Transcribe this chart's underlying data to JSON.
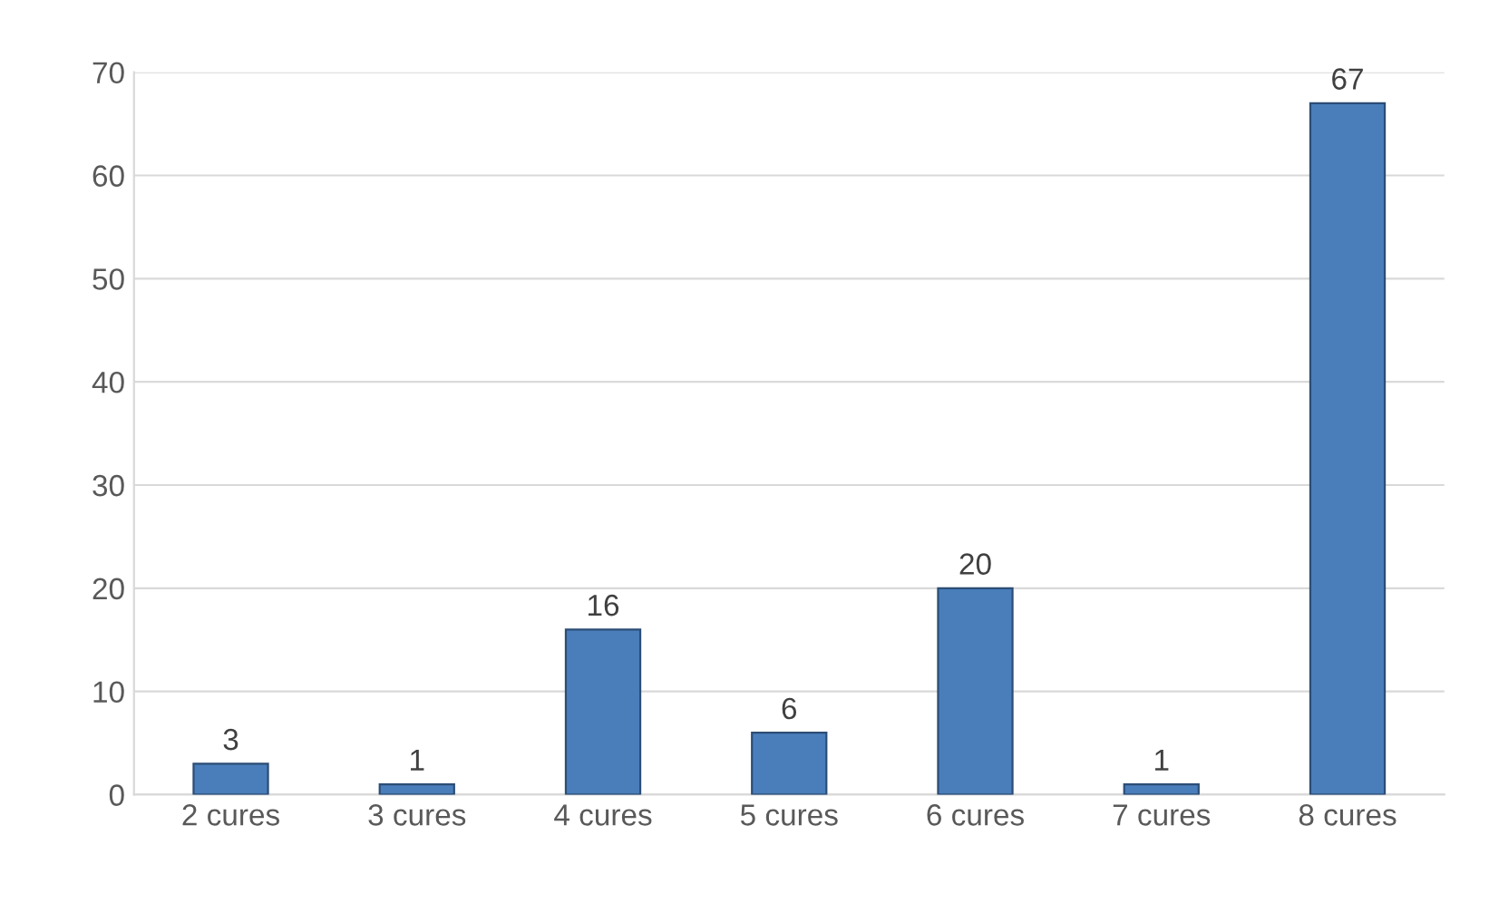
{
  "chart_data": {
    "type": "bar",
    "categories": [
      "2 cures",
      "3 cures",
      "4 cures",
      "5 cures",
      "6 cures",
      "7 cures",
      "8 cures"
    ],
    "values": [
      3,
      1,
      16,
      6,
      20,
      1,
      67
    ],
    "color": "#4a7ebb",
    "ylim": [
      0,
      70
    ],
    "yticks": [
      0,
      10,
      20,
      30,
      40,
      50,
      60,
      70
    ],
    "grid": "y",
    "data_labels": true
  }
}
